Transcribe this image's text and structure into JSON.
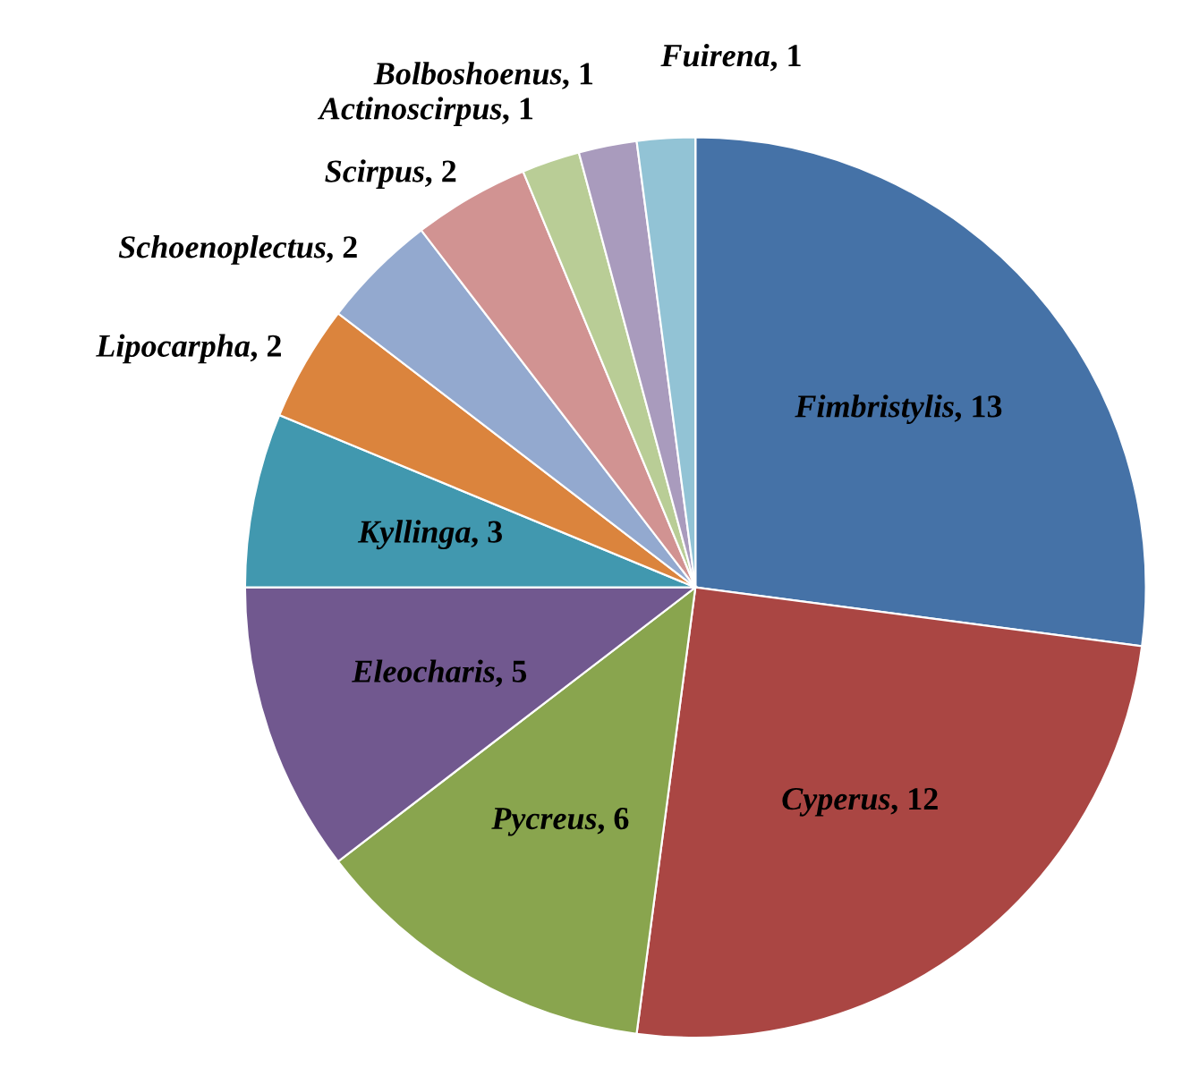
{
  "chart_data": {
    "type": "pie",
    "categories": [
      "Fimbristylis",
      "Cyperus",
      "Pycreus",
      "Eleocharis",
      "Kyllinga",
      "Lipocarpha",
      "Schoenoplectus",
      "Scirpus",
      "Actinoscirpus",
      "Bolboshoenus",
      "Fuirena"
    ],
    "values": [
      13,
      12,
      6,
      5,
      3,
      2,
      2,
      2,
      1,
      1,
      1
    ],
    "colors": [
      "#4572a7",
      "#aa4643",
      "#89a54e",
      "#71588f",
      "#4198af",
      "#db843d",
      "#93a9cf",
      "#d19392",
      "#b9cd96",
      "#a99bbd",
      "#92c3d5"
    ],
    "value_labels": [
      ", 13",
      ", 12",
      ", 6",
      ", 5",
      ", 3",
      ", 2",
      ", 2",
      ", 2",
      ", 1",
      ", 1",
      ", 1"
    ]
  }
}
